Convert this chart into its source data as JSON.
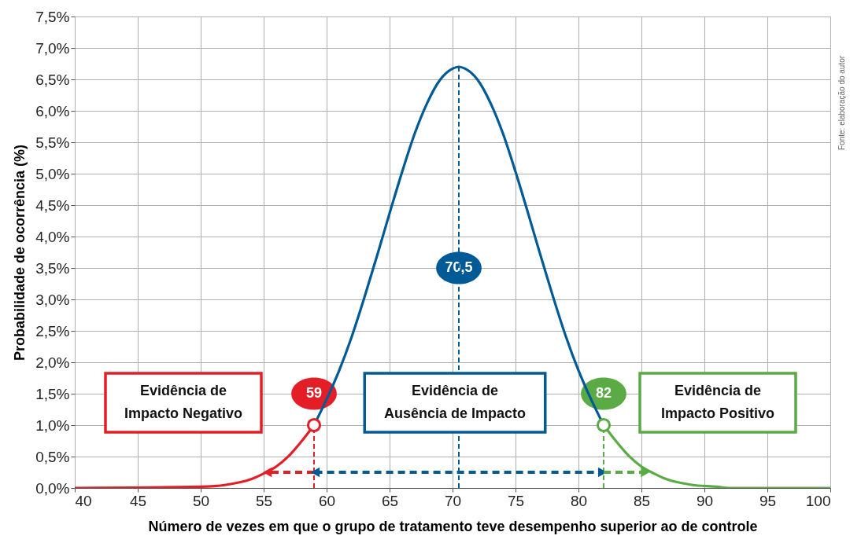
{
  "chart_data": {
    "type": "line",
    "xlabel": "Número de vezes em que o grupo de tratamento teve desempenho superior ao de controle",
    "ylabel": "Probabilidade de ocorrência (%)",
    "xlim": [
      40,
      100
    ],
    "xticks": [
      40,
      45,
      50,
      55,
      60,
      65,
      70,
      75,
      80,
      85,
      90,
      95,
      100
    ],
    "ylim": [
      0,
      7.5
    ],
    "yticks": [
      {
        "value": 0,
        "label": "0,0%"
      },
      {
        "value": 0.5,
        "label": "0,5%"
      },
      {
        "value": 1,
        "label": "1,0%"
      },
      {
        "value": 1.5,
        "label": "1,5%"
      },
      {
        "value": 2,
        "label": "2,0%"
      },
      {
        "value": 2.5,
        "label": "2,5%"
      },
      {
        "value": 3,
        "label": "3,0%"
      },
      {
        "value": 3.5,
        "label": "3,5%"
      },
      {
        "value": 4,
        "label": "4,0%"
      },
      {
        "value": 4.5,
        "label": "4,5%"
      },
      {
        "value": 5,
        "label": "5,0%"
      },
      {
        "value": 5.5,
        "label": "5,5%"
      },
      {
        "value": 6,
        "label": "6,0%"
      },
      {
        "value": 6.5,
        "label": "6,5%"
      },
      {
        "value": 7,
        "label": "7,0%"
      },
      {
        "value": 7.5,
        "label": "7,5%"
      }
    ],
    "grid": true,
    "line_style": "solid",
    "series": [
      {
        "color": "#e41e26",
        "line_style": "dashed",
        "x": [
          59,
          59
        ],
        "values": [
          0,
          1.0
        ]
      },
      {
        "color": "#005a96",
        "line_style": "dashed",
        "x": [
          70.5,
          70.5
        ],
        "values": [
          0,
          6.7
        ]
      },
      {
        "color": "#5aaa46",
        "line_style": "dashed",
        "x": [
          82,
          82
        ],
        "values": [
          0,
          1.0
        ]
      },
      {
        "color": "#e41e26",
        "x": [
          40,
          50,
          52,
          54,
          55,
          56,
          57,
          58,
          59
        ],
        "values": [
          0,
          0.02,
          0.05,
          0.14,
          0.23,
          0.34,
          0.51,
          0.74,
          1.0
        ]
      },
      {
        "color": "#005a96",
        "x": [
          59,
          60,
          61,
          62,
          63,
          64,
          65,
          66,
          67,
          68,
          69,
          70,
          70.5,
          71,
          72,
          73,
          74,
          75,
          76,
          77,
          78,
          79,
          80,
          81,
          82
        ],
        "values": [
          1.0,
          1.41,
          1.87,
          2.41,
          3.03,
          3.69,
          4.37,
          5.03,
          5.64,
          6.13,
          6.49,
          6.67,
          6.7,
          6.67,
          6.49,
          6.13,
          5.64,
          5.03,
          4.37,
          3.69,
          3.03,
          2.41,
          1.87,
          1.41,
          1.0
        ]
      },
      {
        "color": "#5aaa46",
        "x": [
          82,
          83,
          84,
          85,
          86,
          87,
          89,
          91,
          92,
          100
        ],
        "values": [
          1.0,
          0.74,
          0.51,
          0.34,
          0.23,
          0.14,
          0.05,
          0.02,
          0,
          0
        ]
      },
      {
        "color": "#e41e26",
        "line_style": "dashed",
        "marker": "triangle",
        "x": [
          59,
          55.3
        ],
        "values": [
          0.25,
          0.25
        ]
      },
      {
        "color": "#005a96",
        "line_style": "dashed",
        "marker": "triangle",
        "x": [
          59.1,
          81.9
        ],
        "values": [
          0.25,
          0.25
        ]
      },
      {
        "color": "#5aaa46",
        "line_style": "dashed",
        "marker": "triangle",
        "x": [
          82,
          85.3
        ],
        "values": [
          0.25,
          0.25
        ]
      },
      {
        "type": "scatter",
        "color": "#e41e26",
        "marker": "circle",
        "x": [
          59
        ],
        "values": [
          1.0
        ]
      },
      {
        "type": "scatter",
        "color": "#5aaa46",
        "marker": "circle",
        "x": [
          82
        ],
        "values": [
          1.0
        ]
      }
    ],
    "annotations": [
      {
        "text": "59",
        "x": 59,
        "y": 1.0
      },
      {
        "text": "70,5",
        "x": 70.5,
        "y": 3.5
      },
      {
        "text": "82",
        "x": 82,
        "y": 1.0
      },
      "Evidência de\nImpacto Negativo",
      "Evidência de\nAusência de Impacto",
      "Evidência de\nImpacto Positivo",
      "Fonte: elaboração do autor"
    ]
  }
}
